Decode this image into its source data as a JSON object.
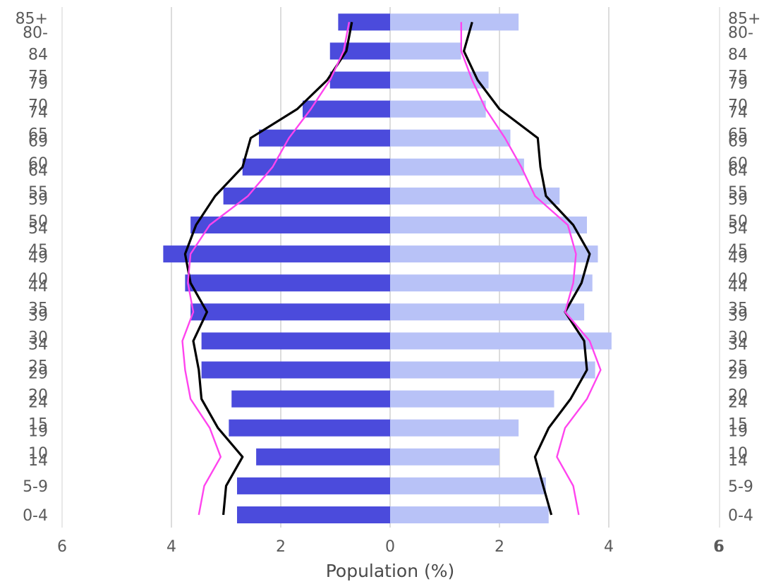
{
  "chart_data": {
    "type": "bar",
    "orientation": "horizontal",
    "subtype": "population-pyramid",
    "xlabel": "Population (%)",
    "xlim": [
      -6,
      6
    ],
    "x_ticks": [
      -6,
      -4,
      -2,
      0,
      2,
      4,
      6
    ],
    "x_tick_labels": [
      "6",
      "4",
      "2",
      "0",
      "2",
      "4",
      "6"
    ],
    "grid": true,
    "categories": [
      "0-4",
      "5-9",
      "10-14",
      "15-19",
      "20-24",
      "25-29",
      "30-34",
      "35-39",
      "40-44",
      "45-49",
      "50-54",
      "55-59",
      "60-64",
      "65-69",
      "70-74",
      "75-79",
      "80-84",
      "85+"
    ],
    "series": [
      {
        "side": "left",
        "color": "#4b4bdc",
        "values": [
          -2.8,
          -2.8,
          -2.45,
          -2.95,
          -2.9,
          -3.45,
          -3.45,
          -3.65,
          -3.75,
          -4.15,
          -3.65,
          -3.05,
          -2.7,
          -2.4,
          -1.6,
          -1.1,
          -1.1,
          -0.95
        ]
      },
      {
        "side": "right",
        "color": "#b8c2f7",
        "values": [
          2.9,
          2.85,
          2.0,
          2.35,
          3.0,
          3.75,
          4.05,
          3.55,
          3.7,
          3.8,
          3.6,
          3.1,
          2.45,
          2.2,
          1.75,
          1.8,
          1.3,
          2.35
        ]
      }
    ],
    "reference_lines": [
      {
        "color": "#000000",
        "left": [
          -3.05,
          -3.0,
          -2.7,
          -3.15,
          -3.45,
          -3.5,
          -3.6,
          -3.35,
          -3.65,
          -3.75,
          -3.55,
          -3.2,
          -2.7,
          -2.55,
          -1.7,
          -1.15,
          -0.8,
          -0.7
        ],
        "right": [
          2.95,
          2.8,
          2.65,
          2.9,
          3.3,
          3.6,
          3.55,
          3.2,
          3.5,
          3.65,
          3.35,
          2.85,
          2.75,
          2.7,
          2.0,
          1.6,
          1.35,
          1.5
        ]
      },
      {
        "color": "#ff44ee",
        "left": [
          -3.5,
          -3.4,
          -3.1,
          -3.3,
          -3.65,
          -3.75,
          -3.8,
          -3.6,
          -3.7,
          -3.65,
          -3.3,
          -2.6,
          -2.15,
          -1.85,
          -1.45,
          -1.1,
          -0.85,
          -0.75
        ],
        "right": [
          3.45,
          3.35,
          3.05,
          3.2,
          3.6,
          3.85,
          3.65,
          3.2,
          3.35,
          3.4,
          3.25,
          2.65,
          2.4,
          2.1,
          1.75,
          1.5,
          1.3,
          1.3
        ]
      }
    ],
    "left_tick_labels": [
      "0-4",
      "5-9",
      "14",
      "10",
      "19",
      "15",
      "24",
      "20",
      "29",
      "25",
      "34",
      "30",
      "39",
      "35",
      "44",
      "40",
      "49",
      "45",
      "54",
      "50",
      "59",
      "55",
      "64",
      "60",
      "69",
      "65",
      "74",
      "70",
      "79",
      "75",
      "84",
      "80-",
      "85+"
    ],
    "right_tick_labels": [
      "0-4",
      "5-9",
      "14",
      "10",
      "19",
      "15",
      "24",
      "20",
      "29",
      "25",
      "34",
      "30",
      "39",
      "35",
      "44",
      "40",
      "49",
      "45",
      "54",
      "50",
      "59",
      "55",
      "64",
      "60",
      "69",
      "65",
      "74",
      "70",
      "79",
      "75",
      "84",
      "80-",
      "85+"
    ],
    "right_panel_x_tick": "6"
  }
}
